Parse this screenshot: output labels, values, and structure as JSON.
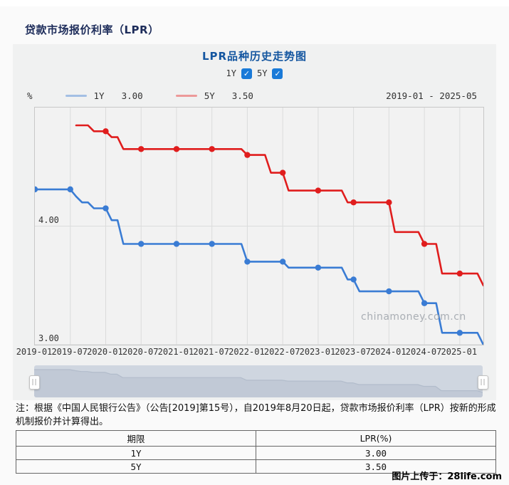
{
  "page": {
    "title": "贷款市场报价利率（LPR）",
    "credit": "图片上传于：28life.com"
  },
  "chart": {
    "title": "LPR品种历史走势图",
    "unit": "%",
    "checkbox_color": "#1a7ad8",
    "checkboxes": [
      {
        "label": "1Y",
        "checked": true,
        "glyph": "✓"
      },
      {
        "label": "5Y",
        "checked": true,
        "glyph": "✓"
      }
    ],
    "watermark": "chinamoney.com.cn"
  },
  "chart_data": {
    "type": "line",
    "title": "LPR品种历史走势图",
    "ylabel": "%",
    "date_range": "2019-01 - 2025-05",
    "x_start": "2019-01",
    "x_end": "2025-05",
    "months_span": 76,
    "tick_interval_months": 6,
    "marker_every_months": 6,
    "ylim": [
      3.0,
      5.0
    ],
    "grid": "on",
    "legend_position": "top-left",
    "x_ticks": [
      "2019-01",
      "2019-07",
      "2020-01",
      "2020-07",
      "2021-01",
      "2021-07",
      "2022-01",
      "2022-07",
      "2023-01",
      "2023-07",
      "2024-01",
      "2024-07",
      "2025-01"
    ],
    "y_labels": [
      {
        "value": 4.0,
        "label": "4.00"
      },
      {
        "value": 3.0,
        "label": "3.00"
      }
    ],
    "series": [
      {
        "name": "1Y",
        "current": "3.00",
        "color": "#3a7cd4",
        "legend_swatch": "#a3bfe4",
        "start_index": 0,
        "values": [
          4.31,
          4.31,
          4.31,
          4.31,
          4.31,
          4.31,
          4.31,
          4.25,
          4.2,
          4.2,
          4.15,
          4.15,
          4.15,
          4.05,
          4.05,
          3.85,
          3.85,
          3.85,
          3.85,
          3.85,
          3.85,
          3.85,
          3.85,
          3.85,
          3.85,
          3.85,
          3.85,
          3.85,
          3.85,
          3.85,
          3.85,
          3.85,
          3.85,
          3.85,
          3.85,
          3.85,
          3.7,
          3.7,
          3.7,
          3.7,
          3.7,
          3.7,
          3.7,
          3.65,
          3.65,
          3.65,
          3.65,
          3.65,
          3.65,
          3.65,
          3.65,
          3.65,
          3.65,
          3.55,
          3.55,
          3.45,
          3.45,
          3.45,
          3.45,
          3.45,
          3.45,
          3.45,
          3.45,
          3.45,
          3.45,
          3.45,
          3.35,
          3.35,
          3.35,
          3.1,
          3.1,
          3.1,
          3.1,
          3.1,
          3.1,
          3.1,
          3.0
        ]
      },
      {
        "name": "5Y",
        "current": "3.50",
        "color": "#e01d1d",
        "legend_swatch": "#ec9a9a",
        "start_index": 7,
        "values": [
          4.85,
          4.85,
          4.85,
          4.8,
          4.8,
          4.8,
          4.75,
          4.75,
          4.65,
          4.65,
          4.65,
          4.65,
          4.65,
          4.65,
          4.65,
          4.65,
          4.65,
          4.65,
          4.65,
          4.65,
          4.65,
          4.65,
          4.65,
          4.65,
          4.65,
          4.65,
          4.65,
          4.65,
          4.65,
          4.6,
          4.6,
          4.6,
          4.6,
          4.45,
          4.45,
          4.45,
          4.3,
          4.3,
          4.3,
          4.3,
          4.3,
          4.3,
          4.3,
          4.3,
          4.3,
          4.3,
          4.2,
          4.2,
          4.2,
          4.2,
          4.2,
          4.2,
          4.2,
          4.2,
          3.95,
          3.95,
          3.95,
          3.95,
          3.95,
          3.85,
          3.85,
          3.85,
          3.6,
          3.6,
          3.6,
          3.6,
          3.6,
          3.6,
          3.6,
          3.5
        ]
      }
    ]
  },
  "note": "注：根据《中国人民银行公告》（公告[2019]第15号），自2019年8月20日起，贷款市场报价利率（LPR）按新的形成机制报价并计算得出。",
  "table": {
    "headers": [
      "期限",
      "LPR(%)"
    ],
    "rows": [
      [
        "1Y",
        "3.00"
      ],
      [
        "5Y",
        "3.50"
      ]
    ]
  }
}
